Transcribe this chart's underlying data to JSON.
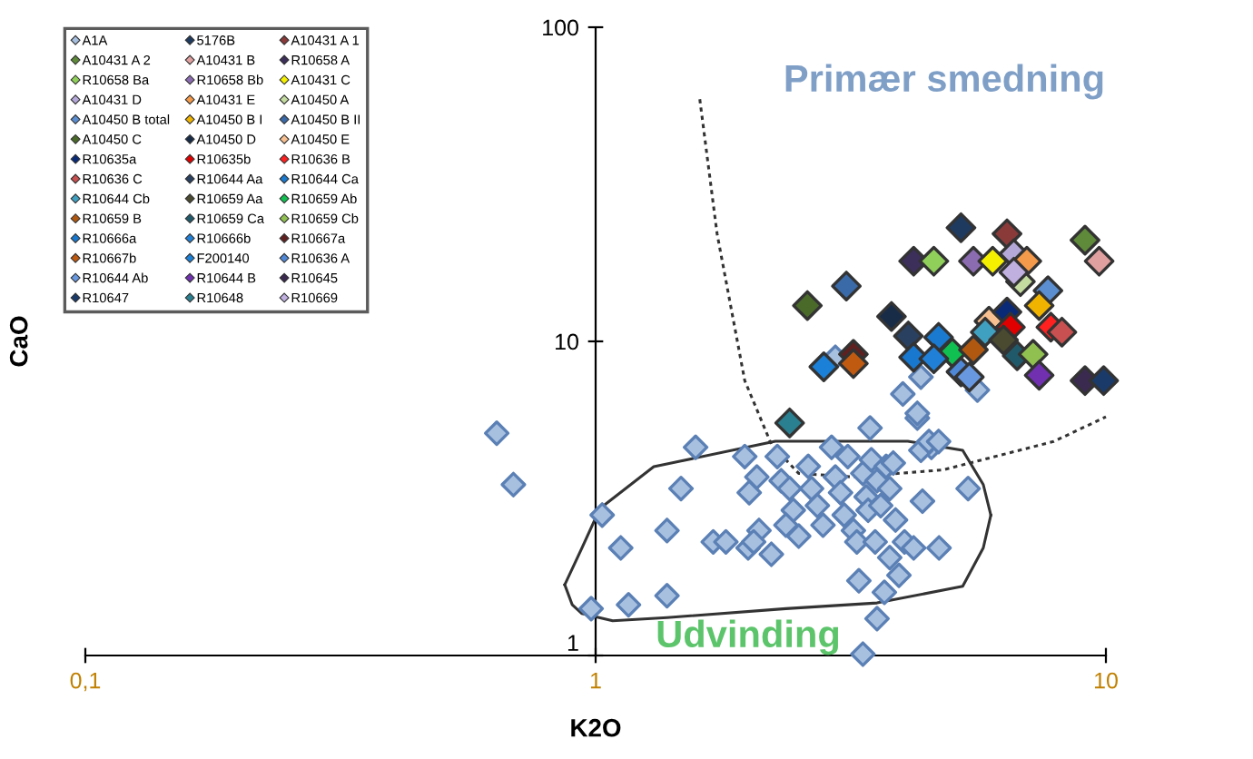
{
  "chart_data": {
    "type": "scatter",
    "xlabel": "K2O",
    "ylabel": "CaO",
    "log": "xy",
    "xlim": [
      0.1,
      10
    ],
    "ylim": [
      1,
      100
    ],
    "xticks": [
      {
        "value": 0.1,
        "label": "0,1"
      },
      1,
      10
    ],
    "yticks": [
      1,
      10,
      100
    ],
    "marker": "diamond",
    "grid": false,
    "legend": "top left",
    "annotations": [
      "Primær smedning",
      "Udvinding"
    ],
    "series": [
      {
        "name": "A1A",
        "color": "#a8c0e0",
        "x": [
          0.64,
          0.69,
          1.03,
          1.12,
          0.98,
          1.16,
          1.38,
          1.47,
          1.57,
          1.7,
          1.8,
          1.38,
          1.96,
          2.0,
          2.07,
          2.09,
          1.99,
          2.04,
          2.21,
          2.27,
          2.31,
          2.4,
          2.44,
          2.36,
          2.5,
          2.61,
          2.65,
          2.72,
          2.79,
          2.9,
          2.95,
          3.02,
          3.07,
          3.12,
          3.2,
          3.25,
          3.34,
          3.39,
          3.42,
          3.47,
          3.53,
          3.56,
          3.62,
          3.71,
          3.77,
          3.87,
          3.83,
          4.03,
          4.2,
          4.71,
          4.37,
          5.37,
          4.55,
          4.34,
          3.45,
          4.27,
          3.28,
          3.68,
          3.93,
          3.56,
          3.34,
          3.77,
          2.95,
          4.0,
          4.27,
          4.34,
          5.6,
          4.5,
          4.7
        ],
        "values": [
          5.1,
          3.5,
          2.8,
          2.2,
          1.41,
          1.45,
          2.5,
          3.4,
          4.6,
          2.3,
          2.3,
          1.55,
          4.3,
          3.3,
          3.7,
          2.5,
          2.2,
          2.3,
          2.1,
          4.3,
          3.6,
          3.4,
          2.9,
          2.6,
          2.4,
          4.0,
          3.4,
          3.0,
          2.6,
          4.6,
          3.7,
          3.3,
          2.8,
          4.3,
          2.5,
          2.3,
          3.8,
          3.2,
          2.9,
          4.2,
          2.3,
          3.6,
          3.0,
          4.0,
          3.4,
          2.7,
          4.1,
          2.3,
          2.2,
          2.2,
          3.1,
          3.4,
          4.6,
          4.5,
          5.3,
          5.7,
          1.73,
          1.59,
          1.8,
          1.31,
          1.01,
          2.05,
          8.9,
          6.8,
          5.9,
          7.7,
          7.0,
          4.8,
          4.8
        ]
      },
      {
        "name": "5176B",
        "color": "#1f3a5f",
        "x": [
          5.2
        ],
        "values": [
          23
        ]
      },
      {
        "name": "A10431 A 1",
        "color": "#8b3a3a",
        "x": [
          6.4
        ],
        "values": [
          22
        ]
      },
      {
        "name": "A10431 A 2",
        "color": "#5e8a3a",
        "x": [
          9.1
        ],
        "values": [
          21
        ]
      },
      {
        "name": "A10431 B",
        "color": "#e0a0a0",
        "x": [
          9.7
        ],
        "values": [
          18
        ]
      },
      {
        "name": "R10658 A",
        "color": "#3c2f5a",
        "x": [
          4.2
        ],
        "values": [
          18
        ]
      },
      {
        "name": "R10658 Ba",
        "color": "#8fcf5a",
        "x": [
          4.6
        ],
        "values": [
          18
        ]
      },
      {
        "name": "R10658 Bb",
        "color": "#8c6cb0",
        "x": [
          5.5
        ],
        "values": [
          18
        ]
      },
      {
        "name": "A10431 C",
        "color": "#f5f000",
        "x": [
          6.0
        ],
        "values": [
          18
        ]
      },
      {
        "name": "A10431 D",
        "color": "#b4a8d8",
        "x": [
          6.6
        ],
        "values": [
          19
        ]
      },
      {
        "name": "A10431 E",
        "color": "#f59a4a",
        "x": [
          7.0
        ],
        "values": [
          18
        ]
      },
      {
        "name": "A10450 A",
        "color": "#c4dca0",
        "x": [
          6.8
        ],
        "values": [
          15.5
        ]
      },
      {
        "name": "A10450 B total",
        "color": "#5a8ed0",
        "x": [
          7.7
        ],
        "values": [
          14.5
        ]
      },
      {
        "name": "A10450 B I",
        "color": "#f0b400",
        "x": [
          7.4
        ],
        "values": [
          13
        ]
      },
      {
        "name": "A10450 B II",
        "color": "#3a6aa8",
        "x": [
          3.1
        ],
        "values": [
          15
        ]
      },
      {
        "name": "A10450 C",
        "color": "#4a6a2a",
        "x": [
          2.6
        ],
        "values": [
          13
        ]
      },
      {
        "name": "A10450 D",
        "color": "#182c48",
        "x": [
          3.8
        ],
        "values": [
          12
        ]
      },
      {
        "name": "A10450 E",
        "color": "#f8c090",
        "x": [
          5.9
        ],
        "values": [
          11.6
        ]
      },
      {
        "name": "R10635a",
        "color": "#0a2a78",
        "x": [
          6.4
        ],
        "values": [
          12.4
        ]
      },
      {
        "name": "R10635b",
        "color": "#e00000",
        "x": [
          6.5
        ],
        "values": [
          11.1
        ]
      },
      {
        "name": "R10636 B",
        "color": "#ff2020",
        "x": [
          7.8
        ],
        "values": [
          11.1
        ]
      },
      {
        "name": "R10636 C",
        "color": "#c85050",
        "x": [
          8.2
        ],
        "values": [
          10.7
        ]
      },
      {
        "name": "R10644 Aa",
        "color": "#2a4060",
        "x": [
          4.1
        ],
        "values": [
          10.4
        ]
      },
      {
        "name": "R10644 Ca",
        "color": "#1a7ad0",
        "x": [
          4.7
        ],
        "values": [
          10.3
        ]
      },
      {
        "name": "R10644 Cb",
        "color": "#40a0c0",
        "x": [
          5.8
        ],
        "values": [
          10.7
        ]
      },
      {
        "name": "R10659 Aa",
        "color": "#4a4a30",
        "x": [
          6.3
        ],
        "values": [
          10.1
        ]
      },
      {
        "name": "R10659 Ab",
        "color": "#10c050",
        "x": [
          5.0
        ],
        "values": [
          9.2
        ]
      },
      {
        "name": "R10659 B",
        "color": "#b05810",
        "x": [
          5.5
        ],
        "values": [
          9.4
        ]
      },
      {
        "name": "R10659 Ca",
        "color": "#205a6a",
        "x": [
          6.7
        ],
        "values": [
          9.0
        ]
      },
      {
        "name": "R10659 Cb",
        "color": "#90c050",
        "x": [
          7.2
        ],
        "values": [
          9.1
        ]
      },
      {
        "name": "R10666a",
        "color": "#1878d0",
        "x": [
          4.2
        ],
        "values": [
          8.9
        ]
      },
      {
        "name": "R10666b",
        "color": "#2080d8",
        "x": [
          4.6
        ],
        "values": [
          8.8
        ]
      },
      {
        "name": "R10667a",
        "color": "#602020",
        "x": [
          3.2
        ],
        "values": [
          9.1
        ]
      },
      {
        "name": "R10667b",
        "color": "#c05a10",
        "x": [
          3.2
        ],
        "values": [
          8.5
        ]
      },
      {
        "name": "F200140",
        "color": "#1a80d8",
        "x": [
          2.8
        ],
        "values": [
          8.3
        ]
      },
      {
        "name": "R10636 A",
        "color": "#5088d8",
        "x": [
          5.2
        ],
        "values": [
          8.0
        ]
      },
      {
        "name": "R10644 Ab",
        "color": "#6898e0",
        "x": [
          5.4
        ],
        "values": [
          7.7
        ]
      },
      {
        "name": "R10644 B",
        "color": "#7030b0",
        "x": [
          7.4
        ],
        "values": [
          7.8
        ]
      },
      {
        "name": "R10645",
        "color": "#3a2a50",
        "x": [
          9.1
        ],
        "values": [
          7.5
        ]
      },
      {
        "name": "R10647",
        "color": "#1a3a6a",
        "x": [
          9.9
        ],
        "values": [
          7.5
        ]
      },
      {
        "name": "R10648",
        "color": "#2a8090",
        "x": [
          2.4
        ],
        "values": [
          5.5
        ]
      },
      {
        "name": "R10669",
        "color": "#c0b0e0",
        "x": [
          6.6
        ],
        "values": [
          16.6
        ]
      },
      {
        "type": "line",
        "color": "#333333",
        "line_style": "dotted",
        "marker": "none",
        "x": [
          1.6,
          1.73,
          1.96,
          2.21,
          2.5,
          3.2,
          4.8,
          7.9,
          10
        ],
        "values": [
          59,
          22,
          7.5,
          4.7,
          3.8,
          3.7,
          3.9,
          4.8,
          5.75
        ]
      },
      {
        "type": "line",
        "color": "#333333",
        "line_style": "solid",
        "marker": "none",
        "x": [
          0.87,
          0.94,
          1.02,
          1.3,
          2.25,
          4.09,
          5.24,
          5.75,
          5.95
        ],
        "values": [
          1.68,
          2.2,
          2.94,
          3.99,
          4.81,
          4.81,
          4.5,
          3.5,
          2.8
        ]
      },
      {
        "type": "line",
        "color": "#333333",
        "line_style": "solid",
        "marker": "none",
        "x": [
          0.87,
          0.9,
          0.94,
          1.08,
          1.38,
          2.36,
          3.56,
          5.24,
          5.75,
          5.95
        ],
        "values": [
          1.68,
          1.45,
          1.36,
          1.29,
          1.32,
          1.41,
          1.47,
          1.66,
          2.2,
          2.8
        ]
      }
    ]
  }
}
